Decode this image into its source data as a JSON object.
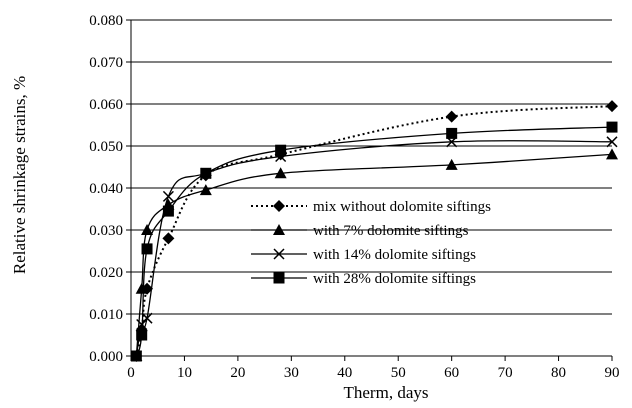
{
  "chart_data": {
    "type": "line",
    "title": "",
    "xlabel": "Therm, days",
    "ylabel": "Relative shrinkage strains, %",
    "xlim": [
      0,
      90
    ],
    "ylim": [
      0,
      0.08
    ],
    "x_ticks": [
      "0",
      "10",
      "20",
      "30",
      "40",
      "50",
      "60",
      "70",
      "80",
      "90"
    ],
    "y_ticks": [
      "0.000",
      "0.010",
      "0.020",
      "0.030",
      "0.040",
      "0.050",
      "0.060",
      "0.070",
      "0.080"
    ],
    "grid": "horizontal",
    "legend_position": "lower-right",
    "series": [
      {
        "name": "mix without dolomite siftings",
        "marker": "diamond",
        "line": "dotted",
        "x": [
          1,
          2,
          3,
          7,
          14,
          28,
          60,
          90
        ],
        "y": [
          0.0,
          0.006,
          0.016,
          0.028,
          0.043,
          0.048,
          0.057,
          0.0595
        ]
      },
      {
        "name": "with 7% dolomite siftings",
        "marker": "triangle",
        "line": "solid",
        "x": [
          1,
          2,
          3,
          7,
          14,
          28,
          60,
          90
        ],
        "y": [
          0.0,
          0.016,
          0.03,
          0.036,
          0.0395,
          0.0435,
          0.0455,
          0.048
        ]
      },
      {
        "name": "with 14% dolomite siftings",
        "marker": "x",
        "line": "solid",
        "x": [
          1,
          2,
          3,
          7,
          14,
          28,
          60,
          90
        ],
        "y": [
          0.0,
          0.0075,
          0.009,
          0.038,
          0.0435,
          0.0475,
          0.051,
          0.051
        ]
      },
      {
        "name": "with 28% dolomite siftings",
        "marker": "square",
        "line": "solid",
        "x": [
          1,
          2,
          3,
          7,
          14,
          28,
          60,
          90
        ],
        "y": [
          0.0,
          0.005,
          0.0255,
          0.0345,
          0.0435,
          0.049,
          0.053,
          0.0545
        ]
      }
    ]
  }
}
